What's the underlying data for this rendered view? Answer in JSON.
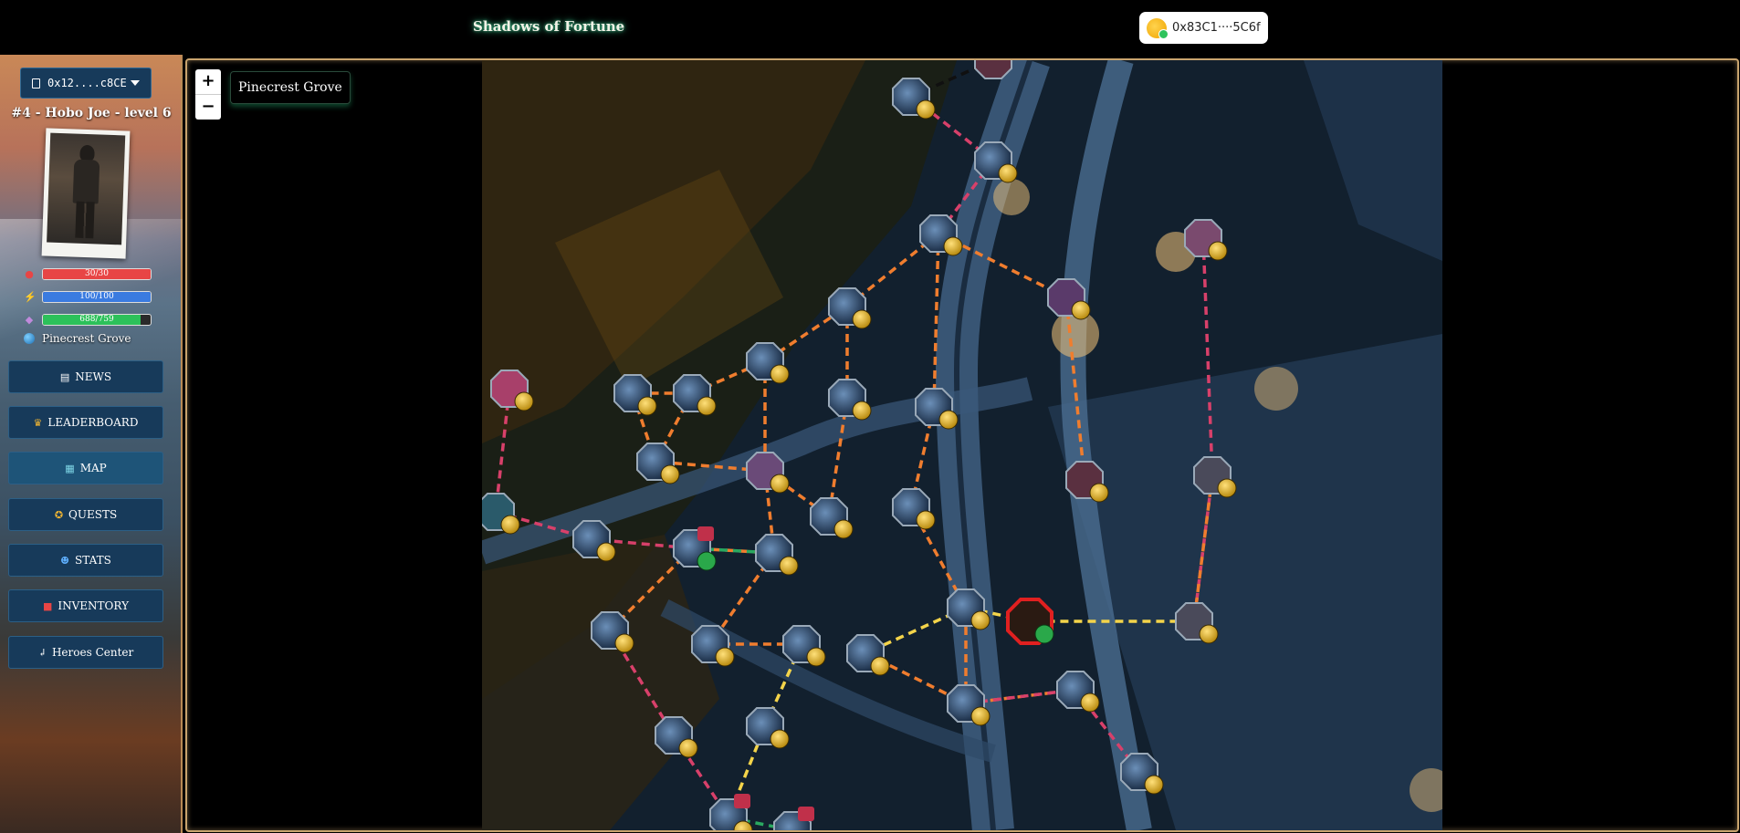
{
  "header": {
    "title": "Shadows of Fortune",
    "wallet_address": "0x83C1····5C6f"
  },
  "sidebar": {
    "account": "0x12....c8CE",
    "hero_title": "#4 - Hobo Joe - level 6",
    "stats": [
      {
        "name": "health",
        "icon": "blood-drop-icon",
        "text": "30/30",
        "fraction": 1.0,
        "color": "#e84545"
      },
      {
        "name": "energy",
        "icon": "lightning-icon",
        "text": "100/100",
        "fraction": 1.0,
        "color": "#3a7be0"
      },
      {
        "name": "experience",
        "icon": "xp-icon",
        "text": "688/759",
        "fraction": 0.906,
        "color": "#2cc15a"
      }
    ],
    "location": "Pinecrest Grove",
    "nav": [
      {
        "id": "news",
        "icon": "newspaper-icon",
        "label": "NEWS"
      },
      {
        "id": "leaderboard",
        "icon": "trophy-icon",
        "label": "LEADERBOARD"
      },
      {
        "id": "map",
        "icon": "map-icon",
        "label": "MAP",
        "active": true
      },
      {
        "id": "quests",
        "icon": "medal-icon",
        "label": "QUESTS"
      },
      {
        "id": "stats",
        "icon": "person-icon",
        "label": "STATS"
      },
      {
        "id": "inventory",
        "icon": "backpack-icon",
        "label": "INVENTORY"
      },
      {
        "id": "heroes",
        "icon": "return-arrow-icon",
        "label": "Heroes Center"
      }
    ]
  },
  "map": {
    "area_name": "Pinecrest Grove",
    "zoom_in": "+",
    "zoom_out": "−"
  }
}
